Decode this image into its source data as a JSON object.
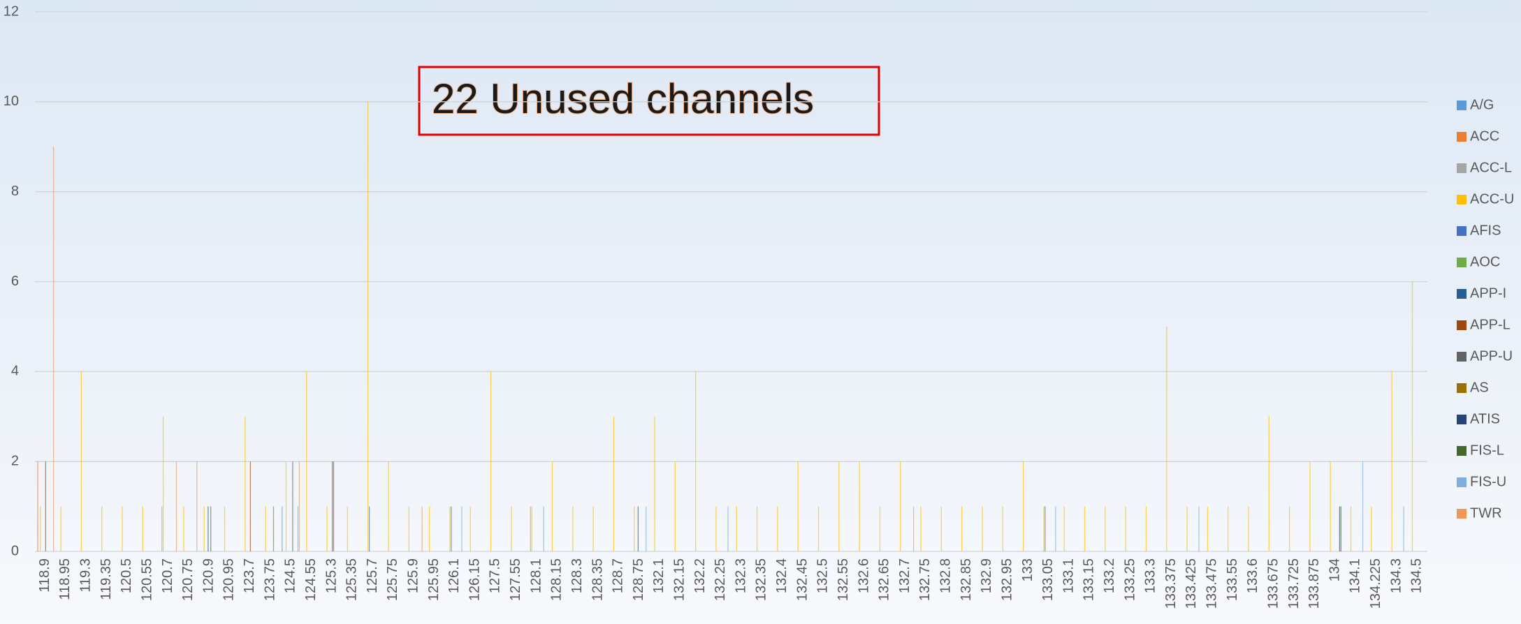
{
  "chart_data": {
    "type": "bar",
    "annotation": "22 Unused channels",
    "categories": [
      "118.9",
      "118.95",
      "119.3",
      "119.35",
      "120.5",
      "120.55",
      "120.7",
      "120.75",
      "120.9",
      "120.95",
      "123.7",
      "123.75",
      "124.5",
      "124.55",
      "125.3",
      "125.35",
      "125.7",
      "125.75",
      "125.9",
      "125.95",
      "126.1",
      "126.15",
      "127.5",
      "127.55",
      "128.1",
      "128.15",
      "128.3",
      "128.35",
      "128.7",
      "128.75",
      "132.1",
      "132.15",
      "132.2",
      "132.25",
      "132.3",
      "132.35",
      "132.4",
      "132.45",
      "132.5",
      "132.55",
      "132.6",
      "132.65",
      "132.7",
      "132.75",
      "132.8",
      "132.85",
      "132.9",
      "132.95",
      "133",
      "133.05",
      "133.1",
      "133.15",
      "133.2",
      "133.25",
      "133.3",
      "133.375",
      "133.425",
      "133.475",
      "133.55",
      "133.6",
      "133.675",
      "133.725",
      "133.875",
      "134",
      "134.1",
      "134.225",
      "134.3",
      "134.5"
    ],
    "series": [
      {
        "name": "A/G",
        "color": "#5b9bd5",
        "values": [
          0,
          0,
          0,
          0,
          0,
          0,
          0,
          0,
          0,
          0,
          0,
          0,
          1,
          0,
          0,
          0,
          0,
          0,
          0,
          0,
          0,
          0,
          0,
          0,
          0,
          0,
          0,
          0,
          0,
          0,
          0,
          0,
          0,
          0,
          0,
          0,
          0,
          0,
          0,
          0,
          0,
          0,
          0,
          0,
          0,
          0,
          0,
          0,
          0,
          0,
          0,
          0,
          0,
          0,
          0,
          0,
          0,
          0,
          0,
          0,
          0,
          0,
          0,
          0,
          0,
          0,
          0,
          0
        ]
      },
      {
        "name": "ACC",
        "color": "#ed7d31",
        "values": [
          2,
          0,
          0,
          0,
          0,
          0,
          0,
          0,
          0,
          0,
          0,
          0,
          0,
          0,
          0,
          0,
          0,
          0,
          0,
          0,
          0,
          0,
          0,
          0,
          0,
          0,
          0,
          0,
          0,
          0,
          0,
          0,
          0,
          0,
          0,
          0,
          0,
          0,
          0,
          0,
          0,
          0,
          0,
          0,
          0,
          0,
          0,
          0,
          0,
          0,
          0,
          0,
          0,
          0,
          0,
          0,
          0,
          0,
          0,
          0,
          0,
          0,
          0,
          0,
          0,
          0,
          0,
          0
        ]
      },
      {
        "name": "ACC-L",
        "color": "#a5a5a5",
        "values": [
          0,
          0,
          0,
          0,
          0,
          0,
          1,
          0,
          0,
          0,
          0,
          0,
          0,
          0,
          0,
          0,
          0,
          0,
          0,
          0,
          0,
          0,
          0,
          0,
          1,
          0,
          0,
          0,
          0,
          0,
          0,
          0,
          0,
          0,
          0,
          0,
          0,
          0,
          0,
          0,
          0,
          0,
          0,
          0,
          0,
          0,
          0,
          0,
          0,
          0,
          0,
          0,
          0,
          0,
          0,
          0,
          0,
          0,
          0,
          0,
          0,
          0,
          0,
          0,
          0,
          0,
          0,
          0
        ]
      },
      {
        "name": "ACC-U",
        "color": "#ffc000",
        "values": [
          1,
          1,
          4,
          1,
          1,
          1,
          3,
          1,
          1,
          1,
          3,
          1,
          2,
          4,
          1,
          1,
          10,
          2,
          1,
          1,
          1,
          1,
          4,
          1,
          1,
          2,
          1,
          1,
          3,
          1,
          3,
          2,
          4,
          1,
          1,
          1,
          1,
          2,
          1,
          2,
          2,
          1,
          2,
          1,
          1,
          1,
          1,
          1,
          2,
          1,
          1,
          1,
          1,
          1,
          1,
          5,
          1,
          1,
          1,
          1,
          3,
          1,
          2,
          2,
          1,
          1,
          4,
          6
        ]
      },
      {
        "name": "AFIS",
        "color": "#4472c4",
        "values": [
          0,
          0,
          0,
          0,
          0,
          0,
          0,
          0,
          0,
          0,
          0,
          0,
          0,
          0,
          0,
          0,
          1,
          0,
          0,
          0,
          1,
          0,
          0,
          0,
          0,
          0,
          0,
          0,
          0,
          0,
          0,
          0,
          0,
          0,
          0,
          0,
          0,
          0,
          0,
          0,
          0,
          0,
          0,
          0,
          0,
          0,
          0,
          0,
          0,
          1,
          0,
          0,
          0,
          0,
          0,
          0,
          0,
          0,
          0,
          0,
          0,
          0,
          0,
          0,
          0,
          0,
          0,
          0
        ]
      },
      {
        "name": "AOC",
        "color": "#70ad47",
        "values": [
          0,
          0,
          0,
          0,
          0,
          0,
          0,
          0,
          0,
          0,
          0,
          0,
          0,
          0,
          0,
          0,
          0,
          0,
          0,
          0,
          0,
          0,
          0,
          0,
          0,
          0,
          0,
          0,
          0,
          0,
          0,
          0,
          0,
          0,
          0,
          0,
          0,
          0,
          0,
          0,
          0,
          0,
          0,
          0,
          0,
          0,
          0,
          0,
          0,
          0,
          0,
          0,
          0,
          0,
          0,
          0,
          0,
          0,
          0,
          0,
          0,
          0,
          0,
          0,
          0,
          0,
          0,
          0
        ]
      },
      {
        "name": "APP-I",
        "color": "#255e91",
        "values": [
          0,
          0,
          0,
          0,
          0,
          0,
          0,
          0,
          1,
          0,
          0,
          0,
          0,
          0,
          0,
          0,
          0,
          0,
          0,
          0,
          0,
          0,
          0,
          0,
          0,
          0,
          0,
          0,
          0,
          1,
          0,
          0,
          0,
          0,
          0,
          0,
          0,
          0,
          0,
          0,
          0,
          0,
          0,
          0,
          0,
          0,
          0,
          0,
          0,
          0,
          0,
          0,
          0,
          0,
          0,
          0,
          0,
          0,
          0,
          0,
          0,
          0,
          0,
          0,
          0,
          0,
          0,
          0
        ]
      },
      {
        "name": "APP-L",
        "color": "#9e480e",
        "values": [
          2,
          0,
          0,
          0,
          0,
          0,
          0,
          0,
          0,
          0,
          2,
          0,
          0,
          0,
          2,
          0,
          0,
          0,
          0,
          0,
          0,
          0,
          0,
          0,
          0,
          0,
          0,
          0,
          0,
          0,
          0,
          0,
          0,
          0,
          0,
          0,
          0,
          0,
          0,
          0,
          0,
          0,
          0,
          0,
          0,
          0,
          0,
          0,
          0,
          0,
          0,
          0,
          0,
          0,
          0,
          0,
          0,
          0,
          0,
          0,
          0,
          0,
          0,
          0,
          0,
          0,
          0,
          0
        ]
      },
      {
        "name": "APP-U",
        "color": "#636363",
        "values": [
          0,
          0,
          0,
          0,
          0,
          0,
          0,
          0,
          1,
          0,
          0,
          0,
          2,
          0,
          2,
          0,
          0,
          0,
          0,
          0,
          0,
          0,
          0,
          0,
          0,
          0,
          0,
          0,
          0,
          0,
          0,
          0,
          0,
          0,
          0,
          0,
          0,
          0,
          0,
          0,
          0,
          0,
          0,
          0,
          0,
          0,
          0,
          0,
          0,
          0,
          0,
          0,
          0,
          0,
          0,
          0,
          0,
          0,
          0,
          0,
          0,
          0,
          0,
          0,
          0,
          0,
          0,
          0
        ]
      },
      {
        "name": "AS",
        "color": "#997300",
        "values": [
          0,
          0,
          0,
          0,
          0,
          0,
          0,
          0,
          0,
          0,
          0,
          1,
          0,
          0,
          0,
          0,
          0,
          0,
          0,
          0,
          0,
          0,
          0,
          0,
          0,
          0,
          0,
          0,
          0,
          0,
          0,
          0,
          0,
          0,
          0,
          0,
          0,
          0,
          0,
          0,
          0,
          0,
          0,
          0,
          0,
          0,
          0,
          0,
          0,
          0,
          0,
          0,
          0,
          0,
          0,
          0,
          0,
          0,
          0,
          0,
          0,
          0,
          0,
          0,
          0,
          0,
          0,
          0
        ]
      },
      {
        "name": "ATIS",
        "color": "#264478",
        "values": [
          0,
          0,
          0,
          0,
          0,
          0,
          0,
          0,
          0,
          0,
          0,
          0,
          0,
          0,
          0,
          0,
          0,
          0,
          0,
          0,
          0,
          0,
          0,
          0,
          0,
          0,
          0,
          0,
          0,
          0,
          0,
          0,
          0,
          0,
          0,
          0,
          0,
          0,
          0,
          0,
          0,
          0,
          0,
          0,
          0,
          0,
          0,
          0,
          0,
          0,
          0,
          0,
          0,
          0,
          0,
          0,
          0,
          0,
          0,
          0,
          0,
          0,
          0,
          1,
          0,
          0,
          0,
          0
        ]
      },
      {
        "name": "FIS-L",
        "color": "#43682b",
        "values": [
          0,
          0,
          0,
          0,
          0,
          0,
          0,
          0,
          0,
          0,
          0,
          0,
          0,
          0,
          0,
          0,
          0,
          0,
          0,
          0,
          0,
          0,
          0,
          0,
          0,
          0,
          0,
          0,
          0,
          0,
          0,
          0,
          0,
          0,
          0,
          0,
          0,
          0,
          0,
          0,
          0,
          0,
          0,
          0,
          0,
          0,
          0,
          0,
          0,
          0,
          0,
          0,
          0,
          0,
          0,
          0,
          0,
          0,
          0,
          0,
          0,
          0,
          0,
          1,
          0,
          0,
          0,
          0
        ]
      },
      {
        "name": "FIS-U",
        "color": "#7cafdd",
        "values": [
          0,
          0,
          0,
          0,
          0,
          0,
          0,
          0,
          0,
          0,
          0,
          0,
          1,
          0,
          0,
          0,
          0,
          0,
          0,
          0,
          1,
          0,
          0,
          0,
          1,
          0,
          0,
          0,
          0,
          1,
          0,
          0,
          0,
          1,
          0,
          0,
          0,
          0,
          0,
          0,
          0,
          0,
          0,
          0,
          0,
          0,
          0,
          0,
          0,
          1,
          0,
          0,
          0,
          0,
          0,
          0,
          1,
          0,
          0,
          0,
          0,
          0,
          0,
          0,
          2,
          0,
          1,
          0
        ]
      },
      {
        "name": "TWR",
        "color": "#f1975a",
        "values": [
          9,
          0,
          0,
          0,
          0,
          0,
          2,
          2,
          0,
          0,
          0,
          0,
          2,
          0,
          0,
          0,
          0,
          0,
          1,
          0,
          0,
          0,
          0,
          0,
          0,
          0,
          0,
          0,
          0,
          0,
          0,
          0,
          0,
          0,
          0,
          0,
          0,
          0,
          0,
          0,
          0,
          0,
          1,
          0,
          0,
          0,
          0,
          0,
          0,
          0,
          0,
          0,
          0,
          0,
          0,
          0,
          0,
          0,
          0,
          0,
          0,
          0,
          0,
          0,
          0,
          0,
          0,
          0
        ]
      }
    ],
    "ylim": [
      0,
      12
    ],
    "yticks": [
      0,
      2,
      4,
      6,
      8,
      10,
      12
    ],
    "grid": true,
    "legend": "right"
  }
}
